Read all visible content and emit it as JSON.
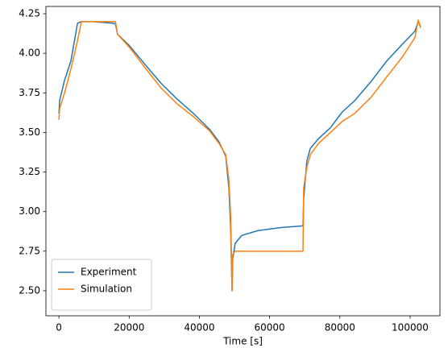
{
  "chart_data": {
    "type": "line",
    "x_label": "Time [s]",
    "x": [
      0,
      200,
      1600,
      3400,
      5300,
      6400,
      9600,
      15400,
      16100,
      16700,
      20000,
      24500,
      29100,
      33700,
      38300,
      42900,
      45600,
      47500,
      48400,
      48900,
      49100,
      49300,
      49500,
      50200,
      52100,
      56700,
      63500,
      69500,
      69700,
      70600,
      71600,
      73900,
      77300,
      80700,
      84200,
      88800,
      93300,
      97900,
      101400,
      102300,
      103000
    ],
    "series": [
      {
        "name": "Experiment",
        "color": "#1f77b4",
        "values": [
          3.62,
          3.7,
          3.83,
          3.95,
          4.19,
          4.2,
          4.2,
          4.19,
          4.185,
          4.12,
          4.05,
          3.93,
          3.81,
          3.71,
          3.62,
          3.52,
          3.44,
          3.35,
          3.15,
          2.9,
          2.7,
          2.5,
          2.7,
          2.8,
          2.85,
          2.88,
          2.9,
          2.91,
          3.08,
          3.32,
          3.4,
          3.46,
          3.53,
          3.63,
          3.7,
          3.82,
          3.95,
          4.06,
          4.14,
          4.2,
          4.17
        ]
      },
      {
        "name": "Simulation",
        "color": "#ff7f0e",
        "values": [
          3.58,
          3.65,
          3.75,
          3.9,
          4.08,
          4.2,
          4.2,
          4.2,
          4.2,
          4.12,
          4.04,
          3.91,
          3.78,
          3.68,
          3.6,
          3.51,
          3.43,
          3.36,
          3.2,
          2.98,
          2.75,
          2.5,
          2.73,
          2.75,
          2.75,
          2.75,
          2.75,
          2.75,
          3.15,
          3.28,
          3.36,
          3.43,
          3.5,
          3.57,
          3.62,
          3.72,
          3.85,
          3.98,
          4.1,
          4.21,
          4.16
        ]
      }
    ],
    "xlim": [
      -3700,
      108500
    ],
    "xticks": [
      0,
      20000,
      40000,
      60000,
      80000,
      100000
    ],
    "ylim": [
      2.342,
      4.296
    ],
    "yticks": [
      {
        "value": 2.5,
        "label": "2.50"
      },
      {
        "value": 2.75,
        "label": "2.75"
      },
      {
        "value": 3.0,
        "label": "3.00"
      },
      {
        "value": 3.25,
        "label": "3.25"
      },
      {
        "value": 3.5,
        "label": "3.50"
      },
      {
        "value": 3.75,
        "label": "3.75"
      },
      {
        "value": 4.0,
        "label": "4.00"
      },
      {
        "value": 4.25,
        "label": "4.25"
      }
    ],
    "grid": false,
    "legend": "lower left"
  }
}
